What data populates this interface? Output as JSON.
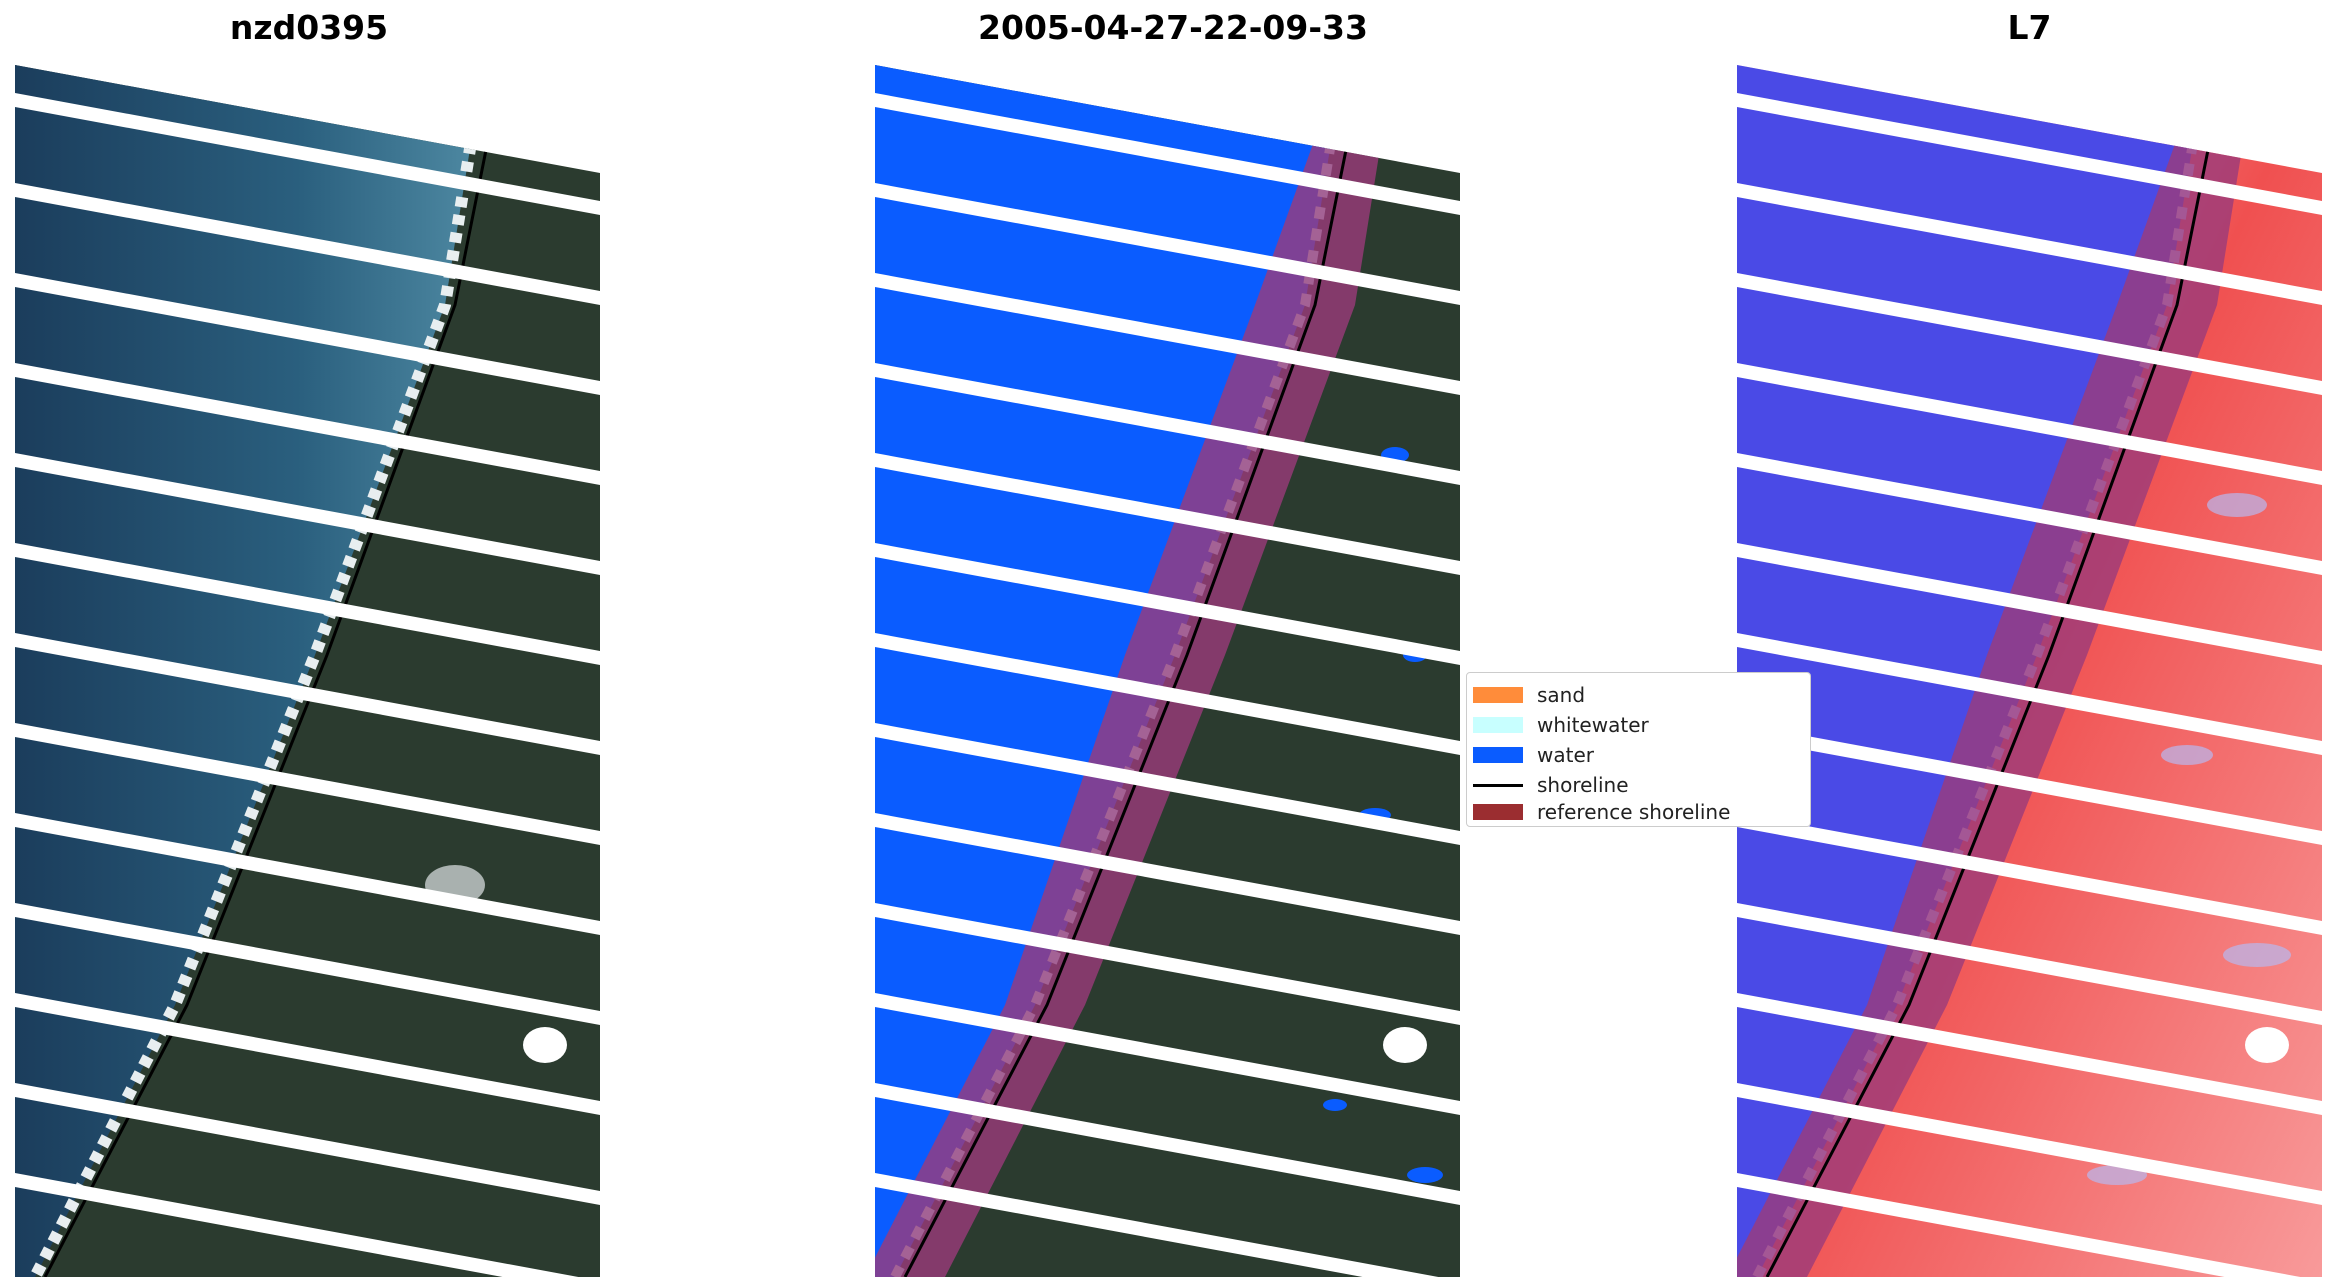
{
  "panels": [
    {
      "title": "nzd0395"
    },
    {
      "title": "2005-04-27-22-09-33"
    },
    {
      "title": "L7"
    }
  ],
  "legend": {
    "items": [
      {
        "label": "sand",
        "color": "#ff8c3a",
        "kind": "patch"
      },
      {
        "label": "whitewater",
        "color": "#c8ffff",
        "kind": "patch"
      },
      {
        "label": "water",
        "color": "#0a5cff",
        "kind": "patch"
      },
      {
        "label": "shoreline",
        "color": "#000000",
        "kind": "line"
      },
      {
        "label": "reference shoreline",
        "color": "#9b2d30",
        "kind": "patch"
      }
    ]
  },
  "colors": {
    "sea": "#1f4d6e",
    "land": "#2b3b2f",
    "water_class": "#0a5cff",
    "whitewater_class": "#c8ffff",
    "index_water": "#4a4ae6",
    "index_land": "#f05050",
    "reference_band": "#9b3b7a"
  }
}
